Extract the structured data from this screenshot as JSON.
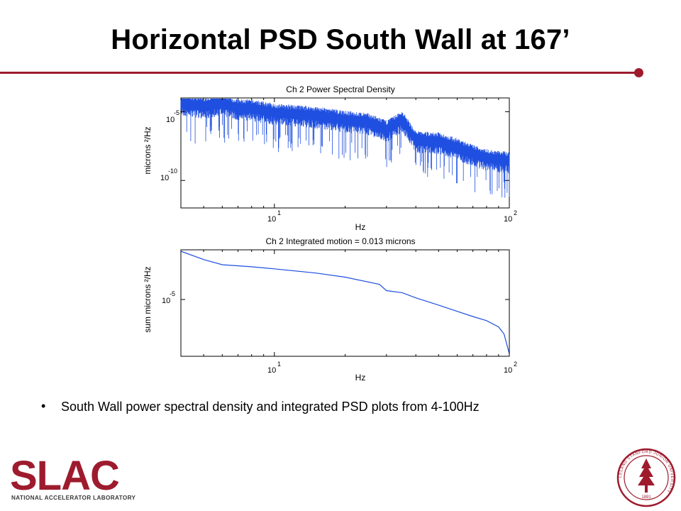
{
  "slide": {
    "title": "Horizontal PSD South Wall at 167’",
    "bullet": "South Wall power spectral density and integrated PSD plots from 4-100Hz",
    "accent_color": "#9e1b2e"
  },
  "logo": {
    "text": "SLAC",
    "subtitle": "NATIONAL ACCELERATOR LABORATORY",
    "color": "#9e1b2e"
  },
  "seal": {
    "icon": "stanford-seal-icon",
    "text": "LELAND STANFORD JUNIOR UNIVERSITY",
    "year": "1891"
  },
  "chart_data": [
    {
      "type": "line",
      "title": "Ch 2  Power Spectral Density",
      "xlabel": "Hz",
      "ylabel": "microns ²/Hz",
      "x_scale": "log",
      "y_scale": "log",
      "xlim": [
        4,
        100
      ],
      "ylim": [
        1e-12,
        0.0001
      ],
      "x_ticks": [
        {
          "base": "10",
          "exp": "1"
        },
        {
          "base": "10",
          "exp": "2"
        }
      ],
      "y_ticks": [
        {
          "base": "10",
          "exp": "-5"
        },
        {
          "base": "10",
          "exp": "-10"
        }
      ],
      "series": [
        {
          "color": "#1f4fe0",
          "x": [
            4,
            5,
            6,
            7,
            8,
            10,
            15,
            20,
            25,
            30,
            35,
            40,
            50,
            60,
            70,
            80,
            100
          ],
          "y": [
            5e-05,
            3e-05,
            5e-05,
            2e-05,
            2e-05,
            1e-05,
            6e-06,
            3e-06,
            2e-06,
            6e-07,
            3e-06,
            1e-07,
            8e-08,
            3e-08,
            1e-08,
            5e-09,
            3e-09
          ]
        }
      ],
      "grid": false
    },
    {
      "type": "line",
      "title": "Ch 2  Integrated motion =   0.013 microns",
      "xlabel": "Hz",
      "ylabel": "sum microns ²/Hz",
      "x_scale": "log",
      "y_scale": "log",
      "xlim": [
        4,
        100
      ],
      "y_ticks": [
        {
          "base": "10",
          "exp": "-5"
        }
      ],
      "x_ticks": [
        {
          "base": "10",
          "exp": "1"
        },
        {
          "base": "10",
          "exp": "2"
        }
      ],
      "series": [
        {
          "color": "#1f4fe0",
          "x": [
            4,
            5,
            6,
            8,
            10,
            15,
            20,
            28,
            30,
            35,
            40,
            50,
            60,
            70,
            80,
            90,
            95,
            100
          ],
          "y": [
            1.0,
            0.92,
            0.87,
            0.85,
            0.83,
            0.79,
            0.75,
            0.68,
            0.62,
            0.6,
            0.55,
            0.48,
            0.42,
            0.37,
            0.33,
            0.27,
            0.2,
            0.01
          ]
        }
      ],
      "grid": false
    }
  ]
}
